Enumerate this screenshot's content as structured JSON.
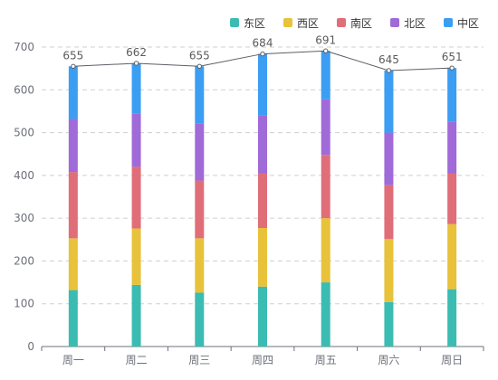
{
  "chart_data": {
    "type": "bar",
    "stacked": true,
    "categories": [
      "周一",
      "周二",
      "周三",
      "周四",
      "周五",
      "周六",
      "周日"
    ],
    "series": [
      {
        "name": "东区",
        "color": "#3bbcb3",
        "values": [
          132,
          144,
          126,
          140,
          150,
          104,
          134
        ]
      },
      {
        "name": "西区",
        "color": "#e8c23a",
        "values": [
          121,
          132,
          127,
          137,
          150,
          147,
          152
        ]
      },
      {
        "name": "南区",
        "color": "#e06e79",
        "values": [
          155,
          144,
          135,
          128,
          148,
          126,
          119
        ]
      },
      {
        "name": "北区",
        "color": "#a06ad9",
        "values": [
          124,
          125,
          133,
          136,
          130,
          123,
          121
        ]
      },
      {
        "name": "中区",
        "color": "#3b9ef3",
        "values": [
          123,
          117,
          134,
          143,
          113,
          145,
          125
        ]
      }
    ],
    "totals": {
      "values": [
        655,
        662,
        655,
        684,
        691,
        645,
        651
      ],
      "color": "#5b5f66"
    },
    "ylim": [
      0,
      700
    ],
    "yticks": [
      0,
      100,
      200,
      300,
      400,
      500,
      600,
      700
    ],
    "grid": true,
    "legend_position": "top-right"
  }
}
